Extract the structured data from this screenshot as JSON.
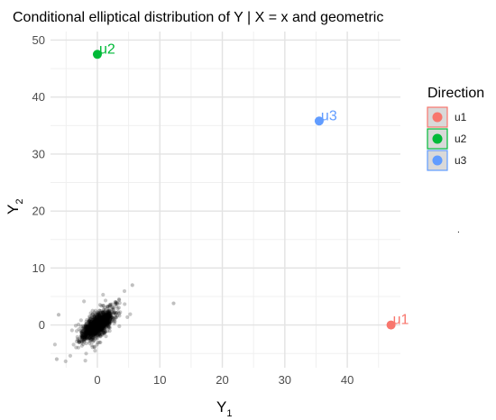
{
  "chart_data": {
    "type": "scatter",
    "title": "Conditional elliptical distribution of Y | X = x and geometric",
    "xlabel": {
      "main": "Y",
      "sub": "1"
    },
    "ylabel": {
      "main": "Y",
      "sub": "2"
    },
    "xlim": [
      -7.5,
      48.5
    ],
    "ylim": [
      -7.5,
      51.5
    ],
    "x_ticks": [
      0,
      10,
      20,
      30,
      40
    ],
    "y_ticks": [
      0,
      10,
      20,
      30,
      40,
      50
    ],
    "grid": true,
    "legend_position": "right",
    "legend": {
      "title": "Direction",
      "entries": [
        {
          "label": "u1",
          "color": "#f8766d"
        },
        {
          "label": "u2",
          "color": "#00ba38"
        },
        {
          "label": "u3",
          "color": "#619cff"
        }
      ]
    },
    "series": [
      {
        "name": "u1",
        "x": [
          47.0
        ],
        "y": [
          0.0
        ],
        "color": "#f8766d"
      },
      {
        "name": "u2",
        "x": [
          0.0
        ],
        "y": [
          47.5
        ],
        "color": "#00ba38"
      },
      {
        "name": "u3",
        "x": [
          35.5
        ],
        "y": [
          35.8
        ],
        "color": "#619cff"
      }
    ],
    "sample_cloud": {
      "center": [
        0,
        0
      ],
      "n": 1500,
      "outliers": [
        [
          12.2,
          3.8
        ],
        [
          5.6,
          7.0
        ],
        [
          -6.5,
          -6.0
        ],
        [
          -6.2,
          1.8
        ]
      ]
    },
    "annotation": "."
  }
}
